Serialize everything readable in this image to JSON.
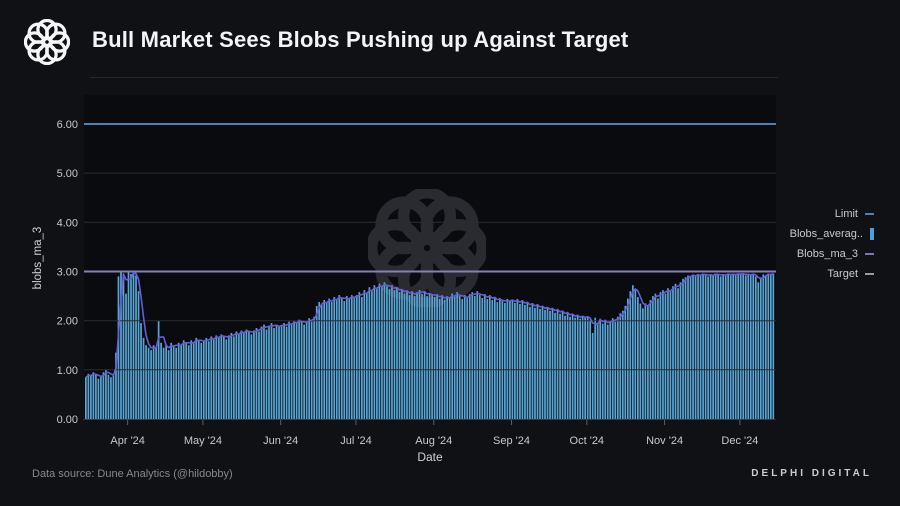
{
  "header": {
    "title": "Bull Market Sees Blobs Pushing up Against Target"
  },
  "axes": {
    "y_title": "blobs_ma_3",
    "x_title": "Date"
  },
  "legend": [
    {
      "label": "Limit",
      "marker": "line",
      "color": "#4a82b8"
    },
    {
      "label": "Blobs_averag..",
      "marker": "bar",
      "color": "#4da0d8"
    },
    {
      "label": "Blobs_ma_3",
      "marker": "line",
      "color": "#7b74c4"
    },
    {
      "label": "Target",
      "marker": "line",
      "color": "#979ba4"
    }
  ],
  "footer": {
    "source": "Data source: Dune Analytics (@hildobby)",
    "brand": "DELPHI DIGITAL"
  },
  "colors": {
    "page_bg": "#101115",
    "plot_bg": "#0a0b0e",
    "bar": "#58a6d6",
    "ma": "#675dd6",
    "limit": "#4a82b8",
    "target": "#8580bd",
    "grid": "#2a2c33",
    "baseline": "#383b42",
    "tick_text": "#c6c9cf",
    "watermark": "#2a2b30",
    "month_tick": "#596069"
  },
  "chart_data": {
    "type": "bar",
    "title": "Bull Market Sees Blobs Pushing up Against Target",
    "xlabel": "Date",
    "ylabel": "blobs_ma_3",
    "ylim": [
      0,
      6.35
    ],
    "grid": true,
    "legend_position": "right",
    "y_ticks": [
      "0.00",
      "1.00",
      "2.00",
      "3.00",
      "4.00",
      "5.00",
      "6.00"
    ],
    "x_ticks": [
      "Apr '24",
      "May '24",
      "Jun '24",
      "Jul '24",
      "Aug '24",
      "Sep '24",
      "Oct '24",
      "Nov '24",
      "Dec '24"
    ],
    "x_tick_days": [
      17,
      47,
      78,
      108,
      139,
      170,
      200,
      231,
      261
    ],
    "start_date": "2024-03-15",
    "end_date": "2024-12-14",
    "frequency": "daily",
    "reference_lines": {
      "Limit": 6.0,
      "Target": 3.0
    },
    "ma_window": 3,
    "series": [
      {
        "name": "Blobs_average",
        "type": "bar",
        "values": [
          0.85,
          0.92,
          0.88,
          0.95,
          0.9,
          0.82,
          0.88,
          0.95,
          1.0,
          0.9,
          0.85,
          0.92,
          1.35,
          2.9,
          3.0,
          2.95,
          2.55,
          3.0,
          2.95,
          3.0,
          2.92,
          2.6,
          1.95,
          1.65,
          1.5,
          1.45,
          1.4,
          1.5,
          1.45,
          2.0,
          1.55,
          1.45,
          1.5,
          1.4,
          1.55,
          1.5,
          1.45,
          1.55,
          1.5,
          1.6,
          1.55,
          1.5,
          1.6,
          1.55,
          1.65,
          1.6,
          1.55,
          1.6,
          1.65,
          1.58,
          1.68,
          1.62,
          1.7,
          1.65,
          1.72,
          1.68,
          1.62,
          1.7,
          1.75,
          1.68,
          1.78,
          1.72,
          1.8,
          1.75,
          1.82,
          1.78,
          1.72,
          1.8,
          1.85,
          1.78,
          1.88,
          1.92,
          1.82,
          1.9,
          1.95,
          1.85,
          1.92,
          1.88,
          1.9,
          1.95,
          1.88,
          1.98,
          1.92,
          2.0,
          1.95,
          2.02,
          1.98,
          1.92,
          2.0,
          2.05,
          1.98,
          2.08,
          2.3,
          2.38,
          2.32,
          2.42,
          2.36,
          2.45,
          2.38,
          2.48,
          2.42,
          2.52,
          2.45,
          2.4,
          2.5,
          2.44,
          2.52,
          2.46,
          2.52,
          2.58,
          2.48,
          2.62,
          2.55,
          2.68,
          2.6,
          2.72,
          2.65,
          2.75,
          2.68,
          2.78,
          2.7,
          2.64,
          2.72,
          2.62,
          2.68,
          2.58,
          2.64,
          2.55,
          2.62,
          2.52,
          2.6,
          2.5,
          2.58,
          2.62,
          2.54,
          2.6,
          2.5,
          2.56,
          2.52,
          2.48,
          2.54,
          2.44,
          2.52,
          2.42,
          2.5,
          2.46,
          2.55,
          2.48,
          2.58,
          2.5,
          2.44,
          2.52,
          2.46,
          2.54,
          2.58,
          2.5,
          2.6,
          2.52,
          2.46,
          2.54,
          2.44,
          2.52,
          2.42,
          2.48,
          2.38,
          2.46,
          2.4,
          2.36,
          2.44,
          2.4,
          2.42,
          2.36,
          2.44,
          2.34,
          2.42,
          2.32,
          2.38,
          2.28,
          2.36,
          2.26,
          2.34,
          2.24,
          2.3,
          2.22,
          2.28,
          2.2,
          2.26,
          2.16,
          2.24,
          2.14,
          2.2,
          2.1,
          2.18,
          2.08,
          2.14,
          2.06,
          2.12,
          2.04,
          2.1,
          2.06,
          2.08,
          2.02,
          1.75,
          2.06,
          1.96,
          2.04,
          1.94,
          2.02,
          1.92,
          2.0,
          2.05,
          1.98,
          2.08,
          2.15,
          2.2,
          2.3,
          2.45,
          2.6,
          2.72,
          2.62,
          2.48,
          2.35,
          2.25,
          2.35,
          2.3,
          2.42,
          2.5,
          2.55,
          2.45,
          2.58,
          2.62,
          2.55,
          2.66,
          2.6,
          2.7,
          2.75,
          2.66,
          2.78,
          2.85,
          2.88,
          2.92,
          2.9,
          2.94,
          2.9,
          2.95,
          2.92,
          2.96,
          2.93,
          2.9,
          2.95,
          2.92,
          2.96,
          2.94,
          2.9,
          2.95,
          2.93,
          2.96,
          2.92,
          2.95,
          2.94,
          2.96,
          2.94,
          2.96,
          2.92,
          2.95,
          2.93,
          2.96,
          2.9,
          2.78,
          2.88,
          2.94,
          2.92,
          2.96,
          2.94,
          2.96
        ]
      },
      {
        "name": "Blobs_ma_3",
        "type": "line",
        "derived": "3-day trailing moving average of Blobs_average"
      }
    ]
  }
}
